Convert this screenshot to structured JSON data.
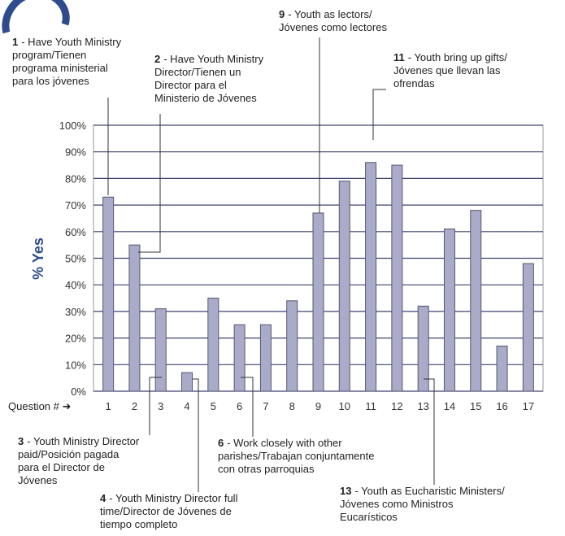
{
  "chart_data": {
    "type": "bar",
    "y_axis_label": "% Yes",
    "x_axis_label": "Question # ➜",
    "categories": [
      "1",
      "2",
      "3",
      "4",
      "5",
      "6",
      "7",
      "8",
      "9",
      "10",
      "11",
      "12",
      "13",
      "14",
      "15",
      "16",
      "17"
    ],
    "values": [
      73,
      55,
      31,
      7,
      35,
      25,
      25,
      34,
      67,
      79,
      86,
      85,
      32,
      61,
      68,
      17,
      48
    ],
    "color": "#a9abc9",
    "ylim": [
      0,
      100
    ],
    "yticks": [
      {
        "value": 0,
        "label": "0%"
      },
      {
        "value": 10,
        "label": "10%"
      },
      {
        "value": 20,
        "label": "20%"
      },
      {
        "value": 30,
        "label": "30%"
      },
      {
        "value": 40,
        "label": "40%"
      },
      {
        "value": 50,
        "label": "50%"
      },
      {
        "value": 60,
        "label": "60%"
      },
      {
        "value": 70,
        "label": "70%"
      },
      {
        "value": 80,
        "label": "80%"
      },
      {
        "value": 90,
        "label": "90%"
      },
      {
        "value": 100,
        "label": "100%"
      }
    ],
    "grid": true,
    "annotations": [
      {
        "number": "1",
        "lines": [
          "- Have Youth Ministry",
          "program/Tienen",
          "programa ministerial",
          "para los jóvenes"
        ]
      },
      {
        "number": "2",
        "lines": [
          "- Have Youth Ministry",
          "Director/Tienen un",
          "Director para el",
          "Ministerio de Jóvenes"
        ]
      },
      {
        "number": "9",
        "lines": [
          "- Youth as lectors/",
          "Jóvenes como lectores"
        ]
      },
      {
        "number": "11",
        "lines": [
          "- Youth bring up gifts/",
          "Jóvenes que llevan las",
          "ofrendas"
        ]
      },
      {
        "number": "3",
        "lines": [
          "- Youth Ministry Director",
          "paid/Posición pagada",
          "para el Director de",
          "Jóvenes"
        ]
      },
      {
        "number": "4",
        "lines": [
          "- Youth Ministry Director full",
          "time/Director de Jóvenes de",
          "tiempo completo"
        ]
      },
      {
        "number": "6",
        "lines": [
          "- Work closely with other",
          "parishes/Trabajan conjuntamente",
          "con otras parroquias"
        ]
      },
      {
        "number": "13",
        "lines": [
          "- Youth as Eucharistic Ministers/",
          "Jóvenes como Ministros",
          "Eucarísticos"
        ]
      }
    ]
  }
}
